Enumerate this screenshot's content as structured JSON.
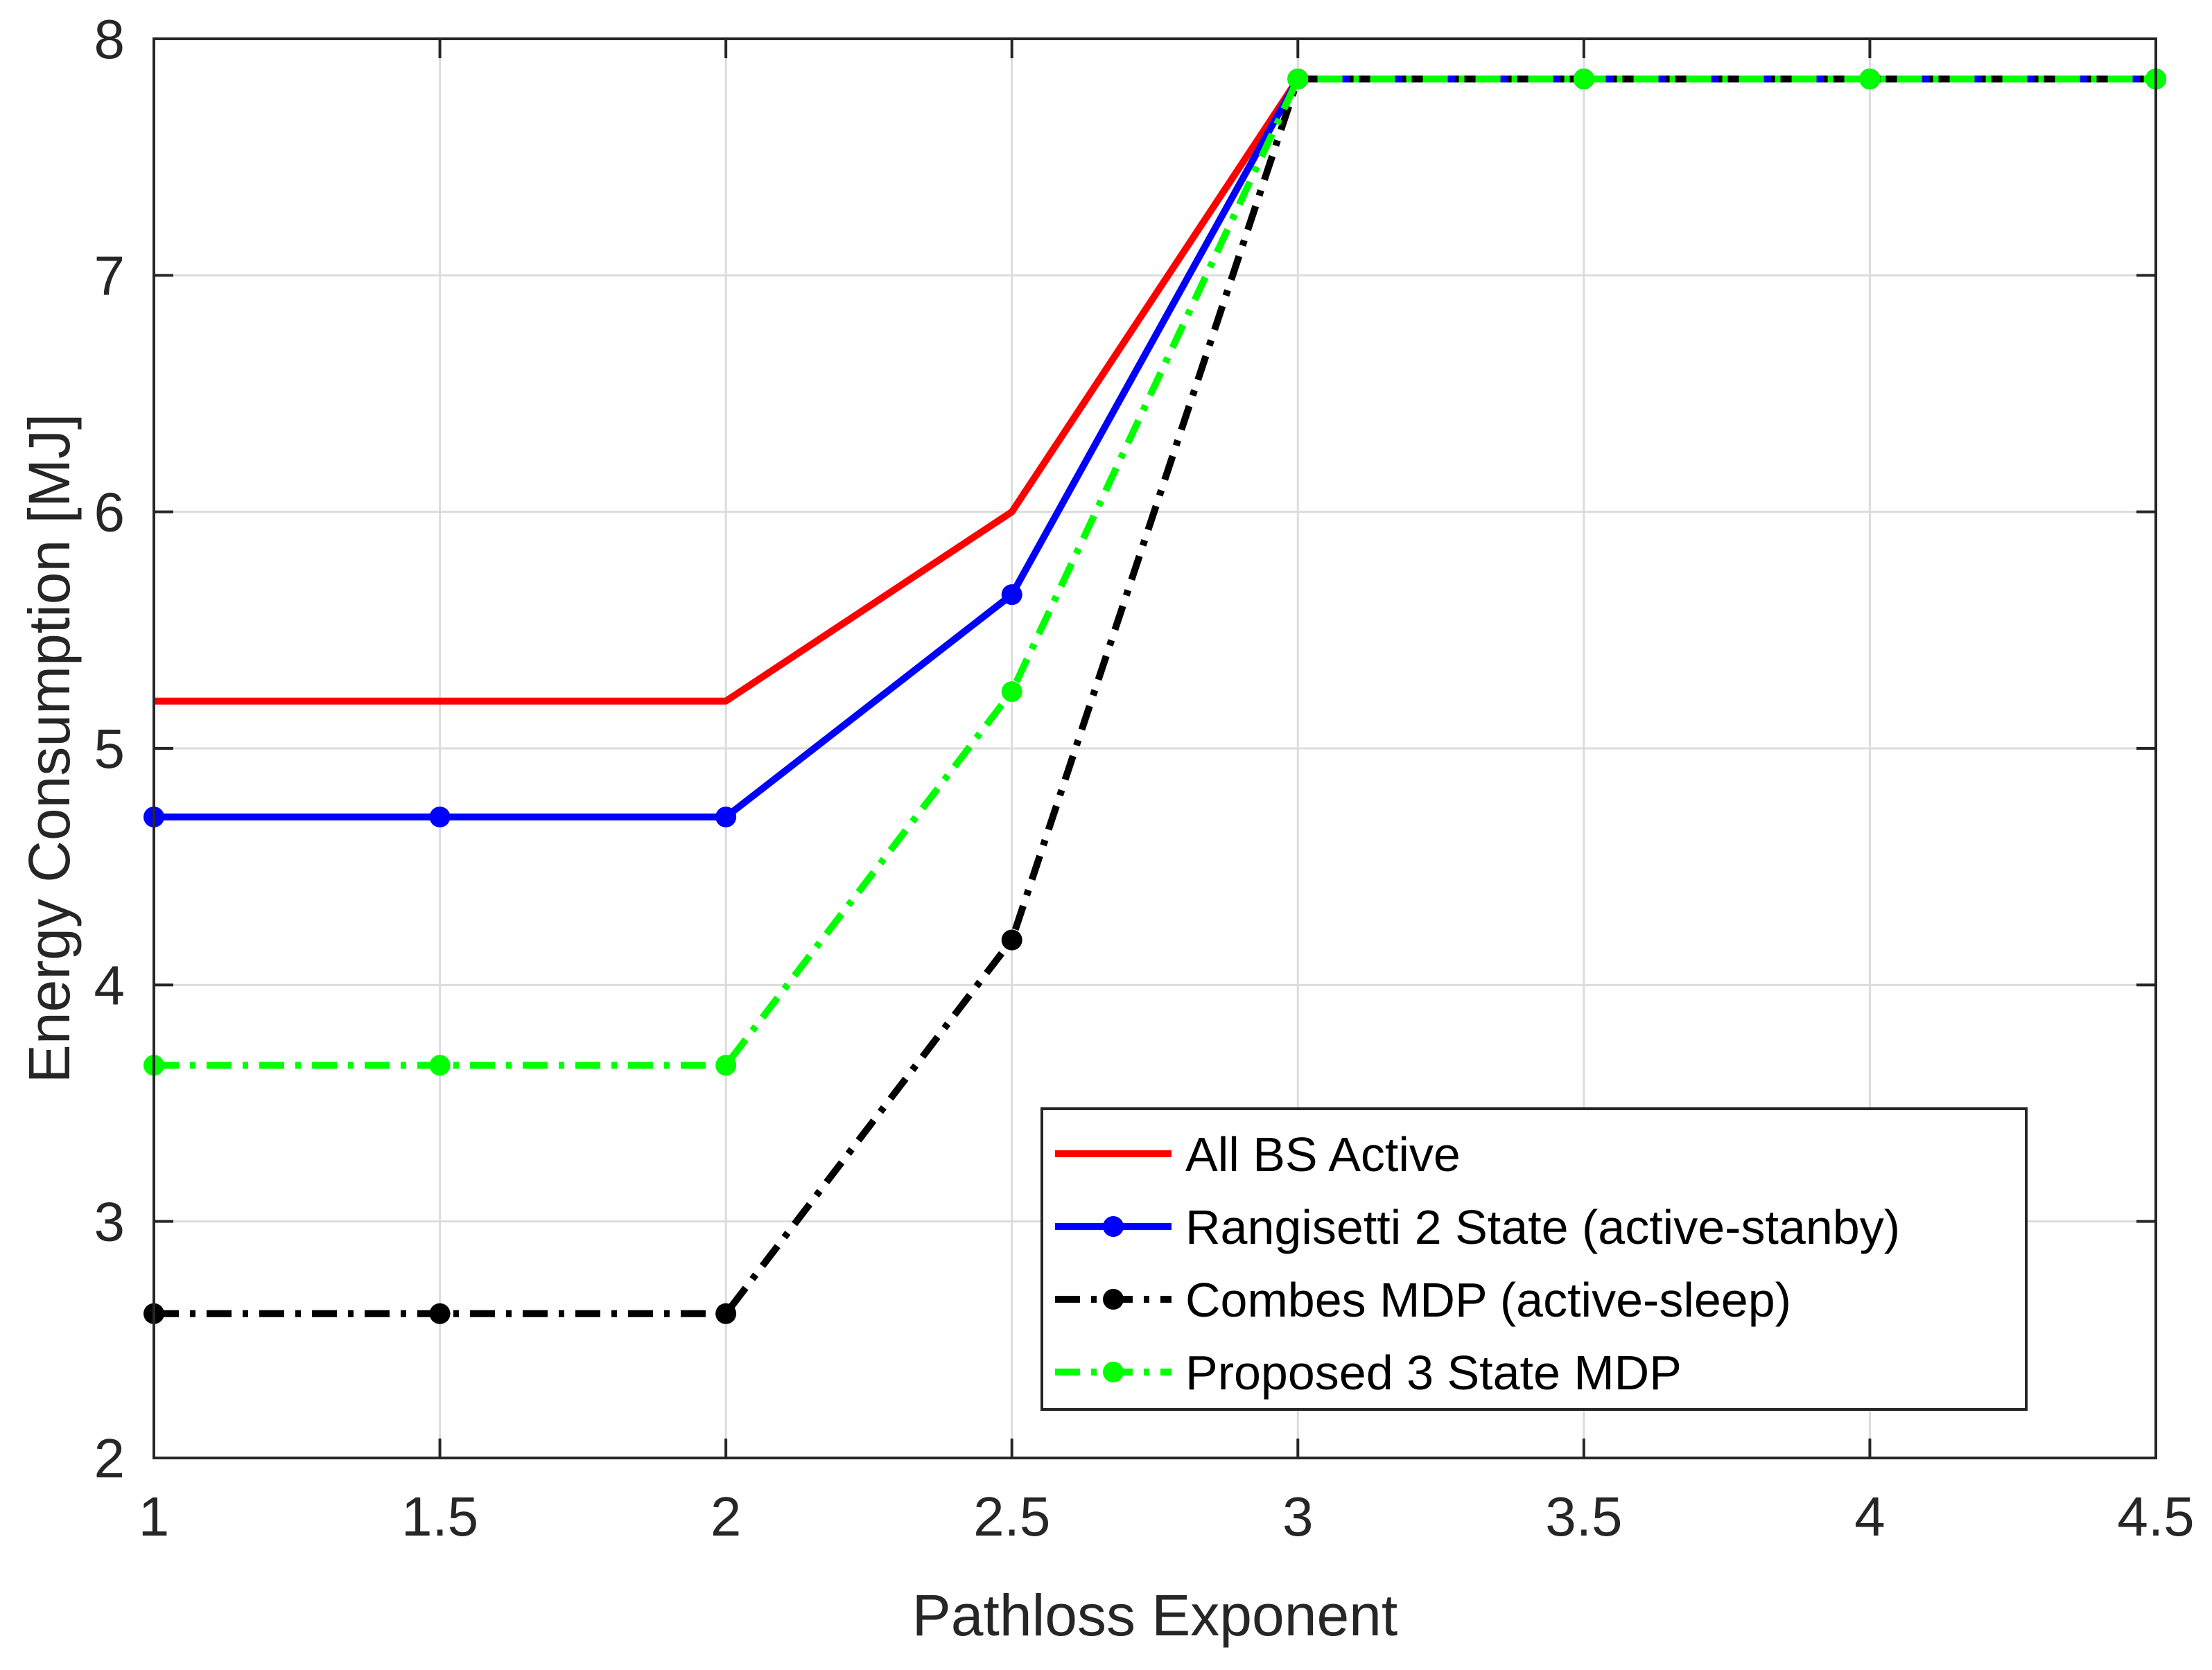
{
  "chart_data": {
    "type": "line",
    "title": "",
    "xlabel": "Pathloss Exponent",
    "ylabel": "Energy Consumption [MJ]",
    "xlim": [
      1,
      4.5
    ],
    "ylim": [
      2,
      8
    ],
    "xticks": [
      1,
      1.5,
      2,
      2.5,
      3,
      3.5,
      4,
      4.5
    ],
    "xtick_labels": [
      "1",
      "1.5",
      "2",
      "2.5",
      "3",
      "3.5",
      "4",
      "4.5"
    ],
    "yticks": [
      2,
      3,
      4,
      5,
      6,
      7,
      8
    ],
    "ytick_labels": [
      "2",
      "3",
      "4",
      "5",
      "6",
      "7",
      "8"
    ],
    "grid": true,
    "legend_position": "bottom-right",
    "x": [
      1,
      1.5,
      2,
      2.5,
      3,
      3.5,
      4,
      4.5
    ],
    "series": [
      {
        "name": "All BS Active",
        "color": "#ff0000",
        "dash": "solid",
        "marker": "none",
        "values": [
          5.2,
          5.2,
          5.2,
          6.0,
          7.83,
          7.83,
          7.83,
          7.83
        ]
      },
      {
        "name": "Rangisetti 2 State (active-stanby)",
        "color": "#0000ff",
        "dash": "solid",
        "marker": "circle",
        "values": [
          4.71,
          4.71,
          4.71,
          5.65,
          7.83,
          7.83,
          7.83,
          7.83
        ]
      },
      {
        "name": "Combes MDP (active-sleep)",
        "color": "#000000",
        "dash": "dashdot",
        "marker": "circle",
        "values": [
          2.61,
          2.61,
          2.61,
          4.19,
          7.83,
          7.83,
          7.83,
          7.83
        ]
      },
      {
        "name": "Proposed 3 State MDP",
        "color": "#00ff00",
        "dash": "dashdot",
        "marker": "circle",
        "values": [
          3.66,
          3.66,
          3.66,
          5.24,
          7.83,
          7.83,
          7.83,
          7.83
        ]
      }
    ]
  }
}
